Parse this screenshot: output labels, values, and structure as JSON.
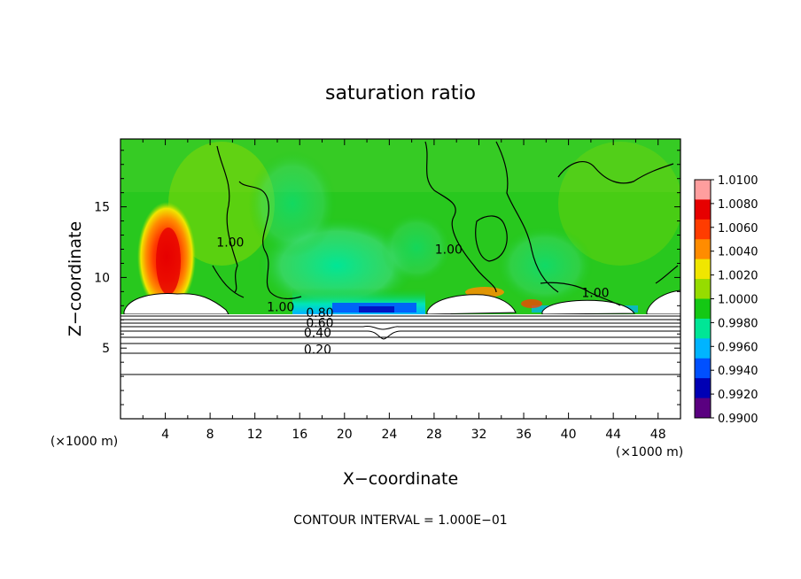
{
  "chart_data": {
    "type": "heatmap",
    "title": "saturation ratio",
    "xlabel": "X−coordinate",
    "ylabel": "Z−coordinate",
    "x_unit_label": "(×1000 m)",
    "y_unit_label": "(×1000 m)",
    "xlim": [
      0,
      50
    ],
    "ylim": [
      0,
      19.8
    ],
    "x_ticks": [
      4,
      8,
      12,
      16,
      20,
      24,
      28,
      32,
      36,
      40,
      44,
      48
    ],
    "x_tick_labels": [
      "4",
      "8",
      "12",
      "16",
      "20",
      "24",
      "28",
      "32",
      "36",
      "40",
      "44",
      "48"
    ],
    "y_ticks": [
      5,
      10,
      15
    ],
    "y_tick_labels": [
      "5",
      "10",
      "15"
    ],
    "grid": false,
    "colorbar": {
      "placement": "right",
      "min": 0.99,
      "max": 1.01,
      "tick_labels": [
        "1.0100",
        "1.0080",
        "1.0060",
        "1.0040",
        "1.0020",
        "1.0000",
        "0.9980",
        "0.9960",
        "0.9940",
        "0.9920",
        "0.9900"
      ],
      "colors": [
        "#ff9e9e",
        "#e60000",
        "#ff3c00",
        "#ff8c00",
        "#f0e600",
        "#96dc00",
        "#14c814",
        "#00e696",
        "#00b4ff",
        "#0050ff",
        "#0000b4",
        "#5a0080"
      ]
    },
    "contour_labels": [
      {
        "text": "1.00",
        "x": 9.8,
        "z": 12.2
      },
      {
        "text": "1.00",
        "x": 29.3,
        "z": 11.7
      },
      {
        "text": "1.00",
        "x": 42.4,
        "z": 8.6
      },
      {
        "text": "1.00",
        "x": 14.3,
        "z": 7.6
      },
      {
        "text": "0.80",
        "x": 17.8,
        "z": 7.2
      },
      {
        "text": "0.60",
        "x": 17.8,
        "z": 6.5
      },
      {
        "text": "0.40",
        "x": 17.6,
        "z": 5.8
      },
      {
        "text": "0.20",
        "x": 17.6,
        "z": 4.6
      }
    ],
    "contour_interval_text": "CONTOUR INTERVAL = 1.000E−01"
  }
}
